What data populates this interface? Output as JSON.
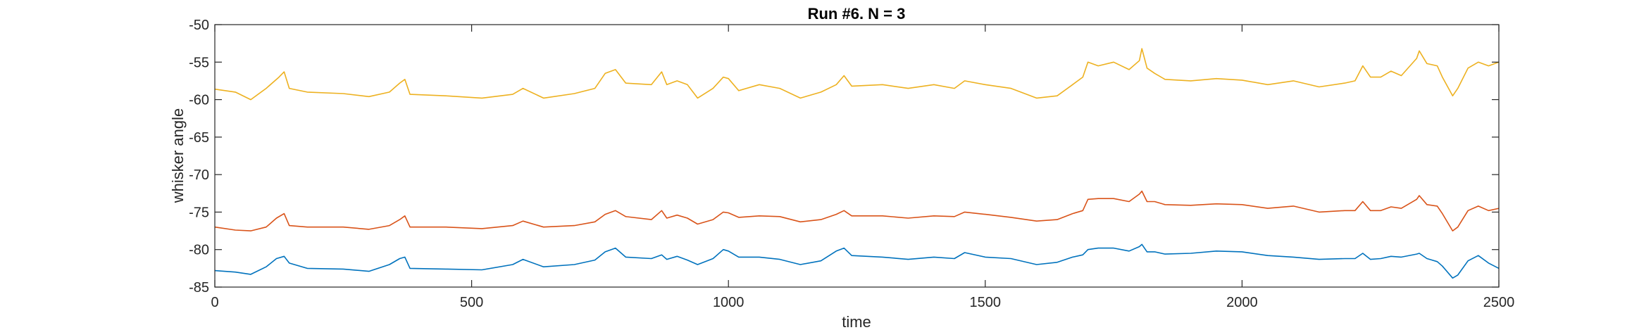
{
  "chart_data": {
    "type": "line",
    "title": "Run #6. N = 3",
    "xlabel": "time",
    "ylabel": "whisker angle",
    "xlim": [
      0,
      2500
    ],
    "ylim": [
      -85,
      -50
    ],
    "xticks": [
      0,
      500,
      1000,
      1500,
      2000,
      2500
    ],
    "yticks": [
      -50,
      -55,
      -60,
      -65,
      -70,
      -75,
      -80,
      -85
    ],
    "grid": false,
    "legend": "none",
    "series": [
      {
        "color": "#EDB120",
        "points": [
          [
            0,
            -58.6
          ],
          [
            40,
            -59.0
          ],
          [
            70,
            -60.0
          ],
          [
            100,
            -58.5
          ],
          [
            125,
            -57.0
          ],
          [
            135,
            -56.3
          ],
          [
            145,
            -58.5
          ],
          [
            180,
            -59.0
          ],
          [
            250,
            -59.2
          ],
          [
            300,
            -59.6
          ],
          [
            340,
            -59.0
          ],
          [
            360,
            -57.8
          ],
          [
            370,
            -57.3
          ],
          [
            380,
            -59.3
          ],
          [
            450,
            -59.5
          ],
          [
            520,
            -59.8
          ],
          [
            580,
            -59.3
          ],
          [
            600,
            -58.5
          ],
          [
            640,
            -59.8
          ],
          [
            700,
            -59.2
          ],
          [
            740,
            -58.5
          ],
          [
            760,
            -56.5
          ],
          [
            780,
            -56.0
          ],
          [
            800,
            -57.8
          ],
          [
            850,
            -58.0
          ],
          [
            870,
            -56.3
          ],
          [
            880,
            -58.0
          ],
          [
            900,
            -57.5
          ],
          [
            920,
            -58.0
          ],
          [
            940,
            -59.8
          ],
          [
            970,
            -58.5
          ],
          [
            990,
            -57.0
          ],
          [
            1000,
            -57.2
          ],
          [
            1020,
            -58.8
          ],
          [
            1060,
            -58.0
          ],
          [
            1100,
            -58.5
          ],
          [
            1140,
            -59.8
          ],
          [
            1180,
            -59.0
          ],
          [
            1210,
            -58.0
          ],
          [
            1225,
            -56.8
          ],
          [
            1240,
            -58.2
          ],
          [
            1300,
            -58.0
          ],
          [
            1350,
            -58.5
          ],
          [
            1400,
            -58.0
          ],
          [
            1440,
            -58.5
          ],
          [
            1460,
            -57.5
          ],
          [
            1500,
            -58.0
          ],
          [
            1550,
            -58.5
          ],
          [
            1600,
            -59.8
          ],
          [
            1640,
            -59.5
          ],
          [
            1670,
            -58.0
          ],
          [
            1690,
            -57.0
          ],
          [
            1700,
            -55.0
          ],
          [
            1720,
            -55.5
          ],
          [
            1750,
            -55.0
          ],
          [
            1780,
            -56.0
          ],
          [
            1800,
            -54.8
          ],
          [
            1805,
            -53.2
          ],
          [
            1815,
            -55.8
          ],
          [
            1830,
            -56.5
          ],
          [
            1850,
            -57.3
          ],
          [
            1900,
            -57.5
          ],
          [
            1950,
            -57.2
          ],
          [
            2000,
            -57.4
          ],
          [
            2050,
            -58.0
          ],
          [
            2100,
            -57.5
          ],
          [
            2150,
            -58.3
          ],
          [
            2200,
            -57.8
          ],
          [
            2220,
            -57.5
          ],
          [
            2235,
            -55.5
          ],
          [
            2250,
            -57.0
          ],
          [
            2270,
            -57.0
          ],
          [
            2290,
            -56.2
          ],
          [
            2310,
            -56.8
          ],
          [
            2340,
            -54.5
          ],
          [
            2345,
            -53.5
          ],
          [
            2360,
            -55.2
          ],
          [
            2380,
            -55.5
          ],
          [
            2390,
            -57.0
          ],
          [
            2410,
            -59.5
          ],
          [
            2420,
            -58.5
          ],
          [
            2440,
            -55.8
          ],
          [
            2460,
            -55.0
          ],
          [
            2480,
            -55.5
          ],
          [
            2500,
            -55.0
          ]
        ]
      },
      {
        "color": "#D95319",
        "points": [
          [
            0,
            -77.0
          ],
          [
            40,
            -77.4
          ],
          [
            70,
            -77.5
          ],
          [
            100,
            -77.0
          ],
          [
            120,
            -75.8
          ],
          [
            135,
            -75.2
          ],
          [
            145,
            -76.8
          ],
          [
            180,
            -77.0
          ],
          [
            250,
            -77.0
          ],
          [
            300,
            -77.3
          ],
          [
            340,
            -76.8
          ],
          [
            360,
            -76.0
          ],
          [
            370,
            -75.5
          ],
          [
            380,
            -77.0
          ],
          [
            450,
            -77.0
          ],
          [
            520,
            -77.2
          ],
          [
            580,
            -76.8
          ],
          [
            600,
            -76.2
          ],
          [
            640,
            -77.0
          ],
          [
            700,
            -76.8
          ],
          [
            740,
            -76.3
          ],
          [
            760,
            -75.3
          ],
          [
            780,
            -74.8
          ],
          [
            800,
            -75.6
          ],
          [
            850,
            -76.0
          ],
          [
            870,
            -74.8
          ],
          [
            880,
            -75.8
          ],
          [
            900,
            -75.4
          ],
          [
            920,
            -75.8
          ],
          [
            940,
            -76.6
          ],
          [
            970,
            -76.0
          ],
          [
            990,
            -75.0
          ],
          [
            1000,
            -75.1
          ],
          [
            1020,
            -75.7
          ],
          [
            1060,
            -75.5
          ],
          [
            1100,
            -75.6
          ],
          [
            1140,
            -76.3
          ],
          [
            1180,
            -76.0
          ],
          [
            1210,
            -75.3
          ],
          [
            1225,
            -74.8
          ],
          [
            1240,
            -75.5
          ],
          [
            1300,
            -75.5
          ],
          [
            1350,
            -75.8
          ],
          [
            1400,
            -75.5
          ],
          [
            1440,
            -75.6
          ],
          [
            1460,
            -75.0
          ],
          [
            1500,
            -75.3
          ],
          [
            1550,
            -75.7
          ],
          [
            1600,
            -76.2
          ],
          [
            1640,
            -76.0
          ],
          [
            1670,
            -75.2
          ],
          [
            1690,
            -74.8
          ],
          [
            1700,
            -73.3
          ],
          [
            1720,
            -73.2
          ],
          [
            1750,
            -73.2
          ],
          [
            1780,
            -73.6
          ],
          [
            1800,
            -72.6
          ],
          [
            1805,
            -72.2
          ],
          [
            1815,
            -73.6
          ],
          [
            1830,
            -73.6
          ],
          [
            1850,
            -74.0
          ],
          [
            1900,
            -74.1
          ],
          [
            1950,
            -73.9
          ],
          [
            2000,
            -74.0
          ],
          [
            2050,
            -74.5
          ],
          [
            2100,
            -74.2
          ],
          [
            2150,
            -75.0
          ],
          [
            2200,
            -74.8
          ],
          [
            2220,
            -74.8
          ],
          [
            2235,
            -73.6
          ],
          [
            2250,
            -74.8
          ],
          [
            2270,
            -74.8
          ],
          [
            2290,
            -74.3
          ],
          [
            2310,
            -74.5
          ],
          [
            2340,
            -73.3
          ],
          [
            2345,
            -72.8
          ],
          [
            2360,
            -74.0
          ],
          [
            2380,
            -74.2
          ],
          [
            2390,
            -75.2
          ],
          [
            2410,
            -77.5
          ],
          [
            2420,
            -77.0
          ],
          [
            2440,
            -74.8
          ],
          [
            2460,
            -74.2
          ],
          [
            2480,
            -74.8
          ],
          [
            2500,
            -74.5
          ]
        ]
      },
      {
        "color": "#0072BD",
        "points": [
          [
            0,
            -82.8
          ],
          [
            40,
            -83.0
          ],
          [
            70,
            -83.3
          ],
          [
            100,
            -82.3
          ],
          [
            120,
            -81.2
          ],
          [
            135,
            -80.9
          ],
          [
            145,
            -81.8
          ],
          [
            180,
            -82.5
          ],
          [
            250,
            -82.6
          ],
          [
            300,
            -82.9
          ],
          [
            340,
            -82.0
          ],
          [
            360,
            -81.2
          ],
          [
            370,
            -81.0
          ],
          [
            380,
            -82.5
          ],
          [
            450,
            -82.6
          ],
          [
            520,
            -82.7
          ],
          [
            580,
            -82.0
          ],
          [
            600,
            -81.3
          ],
          [
            640,
            -82.3
          ],
          [
            700,
            -82.0
          ],
          [
            740,
            -81.4
          ],
          [
            760,
            -80.3
          ],
          [
            780,
            -79.8
          ],
          [
            800,
            -81.0
          ],
          [
            850,
            -81.2
          ],
          [
            870,
            -80.7
          ],
          [
            880,
            -81.3
          ],
          [
            900,
            -80.9
          ],
          [
            920,
            -81.4
          ],
          [
            940,
            -82.0
          ],
          [
            970,
            -81.2
          ],
          [
            990,
            -80.0
          ],
          [
            1000,
            -80.2
          ],
          [
            1020,
            -81.0
          ],
          [
            1060,
            -81.0
          ],
          [
            1100,
            -81.3
          ],
          [
            1140,
            -82.0
          ],
          [
            1180,
            -81.5
          ],
          [
            1210,
            -80.2
          ],
          [
            1225,
            -79.8
          ],
          [
            1240,
            -80.8
          ],
          [
            1300,
            -81.0
          ],
          [
            1350,
            -81.3
          ],
          [
            1400,
            -81.0
          ],
          [
            1440,
            -81.2
          ],
          [
            1460,
            -80.4
          ],
          [
            1500,
            -81.0
          ],
          [
            1550,
            -81.2
          ],
          [
            1600,
            -82.0
          ],
          [
            1640,
            -81.7
          ],
          [
            1670,
            -81.0
          ],
          [
            1690,
            -80.7
          ],
          [
            1700,
            -80.0
          ],
          [
            1720,
            -79.8
          ],
          [
            1750,
            -79.8
          ],
          [
            1780,
            -80.2
          ],
          [
            1800,
            -79.6
          ],
          [
            1805,
            -79.3
          ],
          [
            1815,
            -80.3
          ],
          [
            1830,
            -80.3
          ],
          [
            1850,
            -80.6
          ],
          [
            1900,
            -80.5
          ],
          [
            1950,
            -80.2
          ],
          [
            2000,
            -80.3
          ],
          [
            2050,
            -80.8
          ],
          [
            2100,
            -81.0
          ],
          [
            2150,
            -81.3
          ],
          [
            2200,
            -81.2
          ],
          [
            2220,
            -81.2
          ],
          [
            2235,
            -80.5
          ],
          [
            2250,
            -81.3
          ],
          [
            2270,
            -81.2
          ],
          [
            2290,
            -80.9
          ],
          [
            2310,
            -81.0
          ],
          [
            2340,
            -80.6
          ],
          [
            2345,
            -80.5
          ],
          [
            2360,
            -81.2
          ],
          [
            2380,
            -81.6
          ],
          [
            2390,
            -82.2
          ],
          [
            2410,
            -83.8
          ],
          [
            2420,
            -83.4
          ],
          [
            2440,
            -81.5
          ],
          [
            2460,
            -80.8
          ],
          [
            2480,
            -81.8
          ],
          [
            2500,
            -82.5
          ]
        ]
      }
    ]
  }
}
